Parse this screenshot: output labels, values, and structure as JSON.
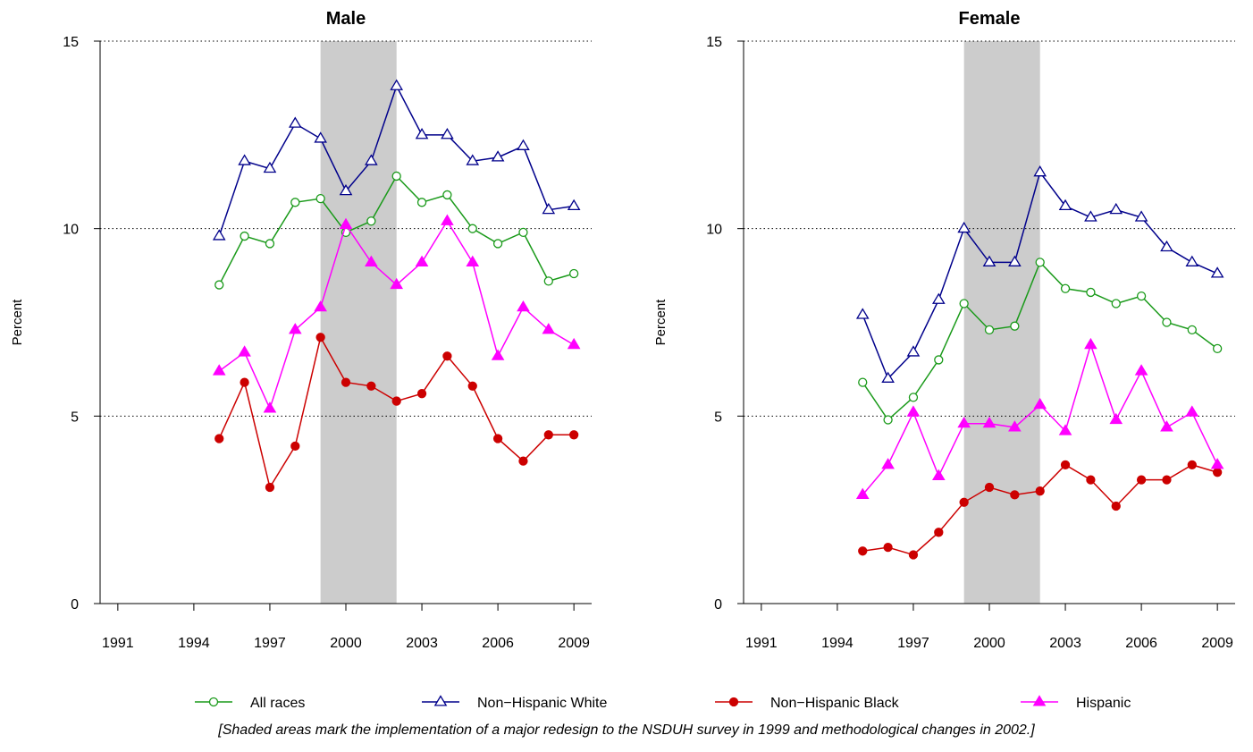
{
  "chart_data": [
    {
      "type": "line",
      "title": "Male",
      "ylabel": "Percent",
      "xlabel": "",
      "xlim": [
        1990.3,
        2009.7
      ],
      "ylim": [
        0,
        15
      ],
      "xticks": [
        1991,
        1994,
        1997,
        2000,
        2003,
        2006,
        2009
      ],
      "yticks": [
        0,
        5,
        10,
        15
      ],
      "gridlines_y": [
        5,
        10,
        15
      ],
      "shaded_x": [
        1999,
        2002
      ],
      "x": [
        1995,
        1996,
        1997,
        1998,
        1999,
        2000,
        2001,
        2002,
        2003,
        2004,
        2005,
        2006,
        2007,
        2008,
        2009
      ],
      "series": [
        {
          "name": "All races",
          "color": "#1a9a1a",
          "marker": "open-circle",
          "values": [
            8.5,
            9.8,
            9.6,
            10.7,
            10.8,
            9.9,
            10.2,
            11.4,
            10.7,
            10.9,
            10.0,
            9.6,
            9.9,
            8.6,
            8.8
          ]
        },
        {
          "name": "Non−Hispanic White",
          "color": "#00008b",
          "marker": "open-triangle",
          "values": [
            9.8,
            11.8,
            11.6,
            12.8,
            12.4,
            11.0,
            11.8,
            13.8,
            12.5,
            12.5,
            11.8,
            11.9,
            12.2,
            10.5,
            10.6
          ]
        },
        {
          "name": "Non−Hispanic Black",
          "color": "#cc0000",
          "marker": "filled-circle",
          "values": [
            4.4,
            5.9,
            3.1,
            4.2,
            7.1,
            5.9,
            5.8,
            5.4,
            5.6,
            6.6,
            5.8,
            4.4,
            3.8,
            4.5,
            4.5
          ]
        },
        {
          "name": "Hispanic",
          "color": "#ff00ff",
          "marker": "filled-triangle",
          "values": [
            6.2,
            6.7,
            5.2,
            7.3,
            7.9,
            10.1,
            9.1,
            8.5,
            9.1,
            10.2,
            9.1,
            6.6,
            7.9,
            7.3,
            6.9
          ]
        }
      ]
    },
    {
      "type": "line",
      "title": "Female",
      "ylabel": "Percent",
      "xlabel": "",
      "xlim": [
        1990.3,
        2009.7
      ],
      "ylim": [
        0,
        15
      ],
      "xticks": [
        1991,
        1994,
        1997,
        2000,
        2003,
        2006,
        2009
      ],
      "yticks": [
        0,
        5,
        10,
        15
      ],
      "gridlines_y": [
        5,
        10,
        15
      ],
      "shaded_x": [
        1999,
        2002
      ],
      "x": [
        1995,
        1996,
        1997,
        1998,
        1999,
        2000,
        2001,
        2002,
        2003,
        2004,
        2005,
        2006,
        2007,
        2008,
        2009
      ],
      "series": [
        {
          "name": "All races",
          "color": "#1a9a1a",
          "marker": "open-circle",
          "values": [
            5.9,
            4.9,
            5.5,
            6.5,
            8.0,
            7.3,
            7.4,
            9.1,
            8.4,
            8.3,
            8.0,
            8.2,
            7.5,
            7.3,
            6.8
          ]
        },
        {
          "name": "Non−Hispanic White",
          "color": "#00008b",
          "marker": "open-triangle",
          "values": [
            7.7,
            6.0,
            6.7,
            8.1,
            10.0,
            9.1,
            9.1,
            11.5,
            10.6,
            10.3,
            10.5,
            10.3,
            9.5,
            9.1,
            8.8
          ]
        },
        {
          "name": "Non−Hispanic Black",
          "color": "#cc0000",
          "marker": "filled-circle",
          "values": [
            1.4,
            1.5,
            1.3,
            1.9,
            2.7,
            3.1,
            2.9,
            3.0,
            3.7,
            3.3,
            2.6,
            3.3,
            3.3,
            3.7,
            3.5
          ]
        },
        {
          "name": "Hispanic",
          "color": "#ff00ff",
          "marker": "filled-triangle",
          "values": [
            2.9,
            3.7,
            5.1,
            3.4,
            4.8,
            4.8,
            4.7,
            5.3,
            4.6,
            6.9,
            4.9,
            6.2,
            4.7,
            5.1,
            3.7
          ]
        }
      ]
    }
  ],
  "legend": {
    "placement": "bottom",
    "items": [
      {
        "label": "All races",
        "color": "#1a9a1a",
        "marker": "open-circle"
      },
      {
        "label": "Non−Hispanic White",
        "color": "#00008b",
        "marker": "open-triangle"
      },
      {
        "label": "Non−Hispanic Black",
        "color": "#cc0000",
        "marker": "filled-circle"
      },
      {
        "label": "Hispanic",
        "color": "#ff00ff",
        "marker": "filled-triangle"
      }
    ]
  },
  "footnote": "[Shaded areas mark the implementation of a major redesign to the NSDUH survey in 1999 and methodological changes in 2002.]"
}
